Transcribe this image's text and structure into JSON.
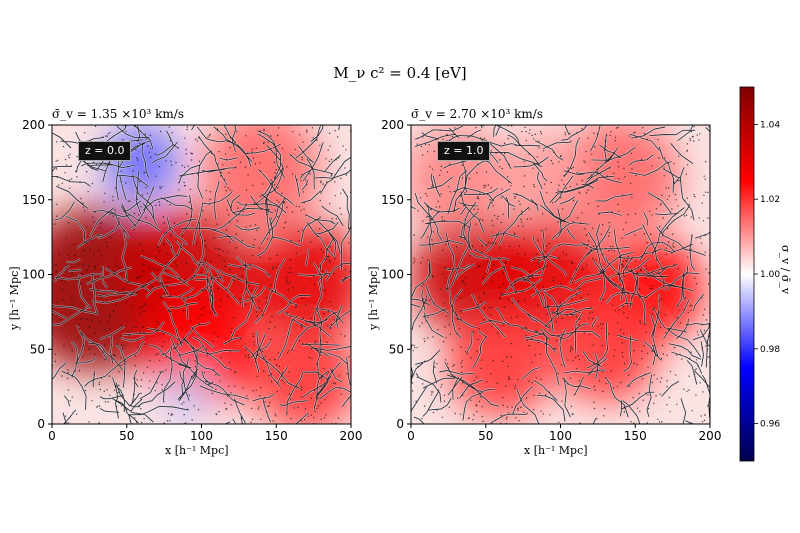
{
  "title": "M_ν c² = 0.4 [eV]",
  "chart_data": [
    {
      "type": "heatmap",
      "title": "σ̄_v = 1.35 ×10³ km/s",
      "annotation": "z = 0.0",
      "xlabel": "x [h⁻¹ Mpc]",
      "ylabel": "y [h⁻¹ Mpc]",
      "xlim": [
        0,
        200
      ],
      "ylim": [
        0,
        200
      ],
      "xticks": [
        0,
        50,
        100,
        150,
        200
      ],
      "yticks": [
        0,
        50,
        100,
        150,
        200
      ],
      "colormap": "seismic",
      "field_regions": [
        {
          "x": 30,
          "y": 90,
          "r": 55,
          "value": 1.045
        },
        {
          "x": 90,
          "y": 100,
          "r": 45,
          "value": 1.035
        },
        {
          "x": 170,
          "y": 95,
          "r": 40,
          "value": 1.03
        },
        {
          "x": 100,
          "y": 50,
          "r": 40,
          "value": 1.025
        },
        {
          "x": 170,
          "y": 30,
          "r": 35,
          "value": 1.02
        },
        {
          "x": 140,
          "y": 170,
          "r": 40,
          "value": 1.015
        },
        {
          "x": 60,
          "y": 175,
          "r": 25,
          "value": 0.985
        },
        {
          "x": 90,
          "y": 18,
          "r": 18,
          "value": 0.995
        }
      ]
    },
    {
      "type": "heatmap",
      "title": "σ̄_v = 2.70 ×10³ km/s",
      "annotation": "z = 1.0",
      "xlabel": "x [h⁻¹ Mpc]",
      "ylabel": "y [h⁻¹ Mpc]",
      "xlim": [
        0,
        200
      ],
      "ylim": [
        0,
        200
      ],
      "xticks": [
        0,
        50,
        100,
        150,
        200
      ],
      "yticks": [
        0,
        50,
        100,
        150,
        200
      ],
      "colormap": "seismic",
      "field_regions": [
        {
          "x": 40,
          "y": 100,
          "r": 40,
          "value": 1.035
        },
        {
          "x": 90,
          "y": 100,
          "r": 40,
          "value": 1.03
        },
        {
          "x": 160,
          "y": 90,
          "r": 35,
          "value": 1.025
        },
        {
          "x": 130,
          "y": 50,
          "r": 35,
          "value": 1.02
        },
        {
          "x": 60,
          "y": 40,
          "r": 35,
          "value": 1.02
        },
        {
          "x": 140,
          "y": 165,
          "r": 40,
          "value": 1.015
        },
        {
          "x": 30,
          "y": 165,
          "r": 35,
          "value": 1.012
        },
        {
          "x": 90,
          "y": 165,
          "r": 30,
          "value": 1.01
        }
      ]
    }
  ],
  "colorbar": {
    "label": "σ_v / σ̄_v",
    "range": [
      0.95,
      1.05
    ],
    "ticks": [
      "0.96",
      "0.98",
      "1.00",
      "1.02",
      "1.04"
    ]
  }
}
